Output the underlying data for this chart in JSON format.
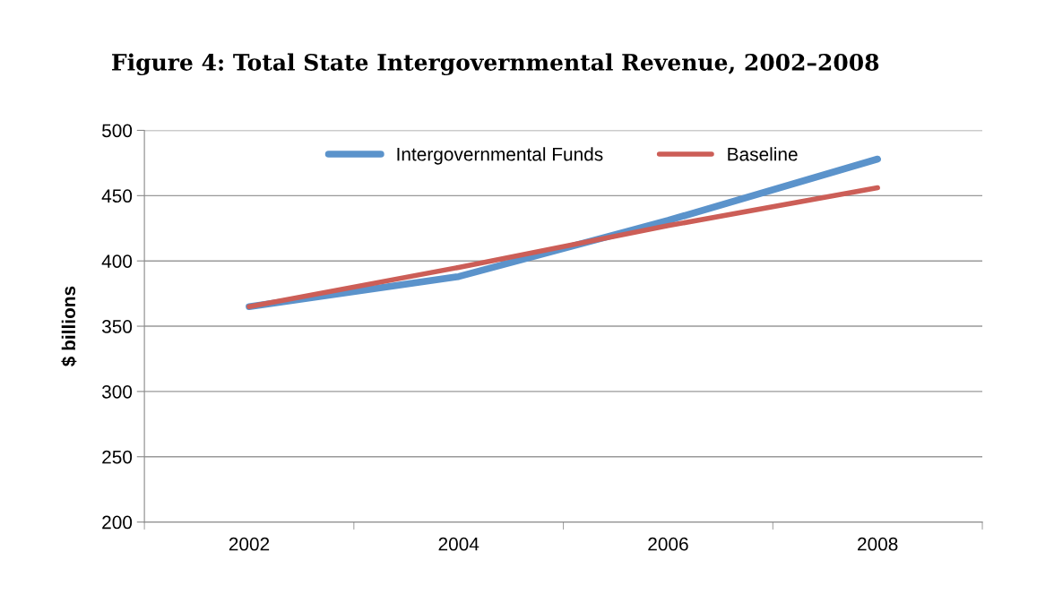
{
  "chart_data": {
    "type": "line",
    "title": "Figure 4: Total State Intergovernmental Revenue, 2002–2008",
    "ylabel": "$ billions",
    "categories": [
      "2002",
      "2004",
      "2006",
      "2008"
    ],
    "series": [
      {
        "name": "Intergovernmental Funds",
        "color": "#5b93cb",
        "values": [
          365,
          388,
          431,
          478
        ]
      },
      {
        "name": "Baseline",
        "color": "#cc5e57",
        "values": [
          365,
          395,
          427,
          456
        ]
      }
    ],
    "ylim": [
      200,
      500
    ],
    "yticks": [
      200,
      250,
      300,
      350,
      400,
      450,
      500
    ],
    "grid": "y",
    "legend": "top",
    "marker": "none",
    "line_style": "solid"
  }
}
